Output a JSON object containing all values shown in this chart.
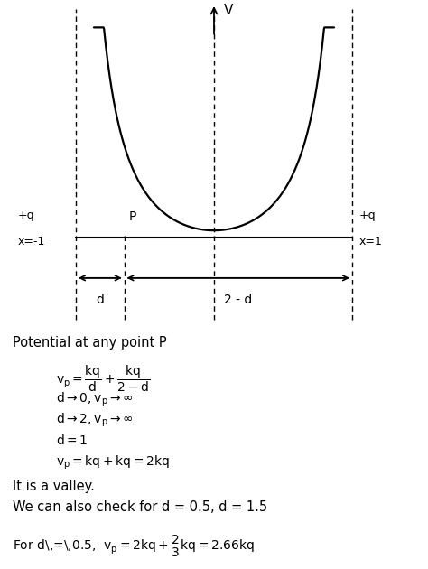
{
  "bg_color": "#ffffff",
  "curve_color": "#000000",
  "line_color": "#000000",
  "dashed_color": "#000000",
  "charge_label": "+q",
  "left_label": "x=-1",
  "right_label": "x=1",
  "axis_label_V": "V",
  "point_label": "P",
  "arrow_d_label": "d",
  "arrow_2md_label": "2 - d",
  "line1": "Potential at any point P",
  "line2": "It is a valley.",
  "line3": "We can also check for d = 0.5, d = 1.5",
  "fig_width": 4.74,
  "fig_height": 6.3,
  "dpi": 100
}
